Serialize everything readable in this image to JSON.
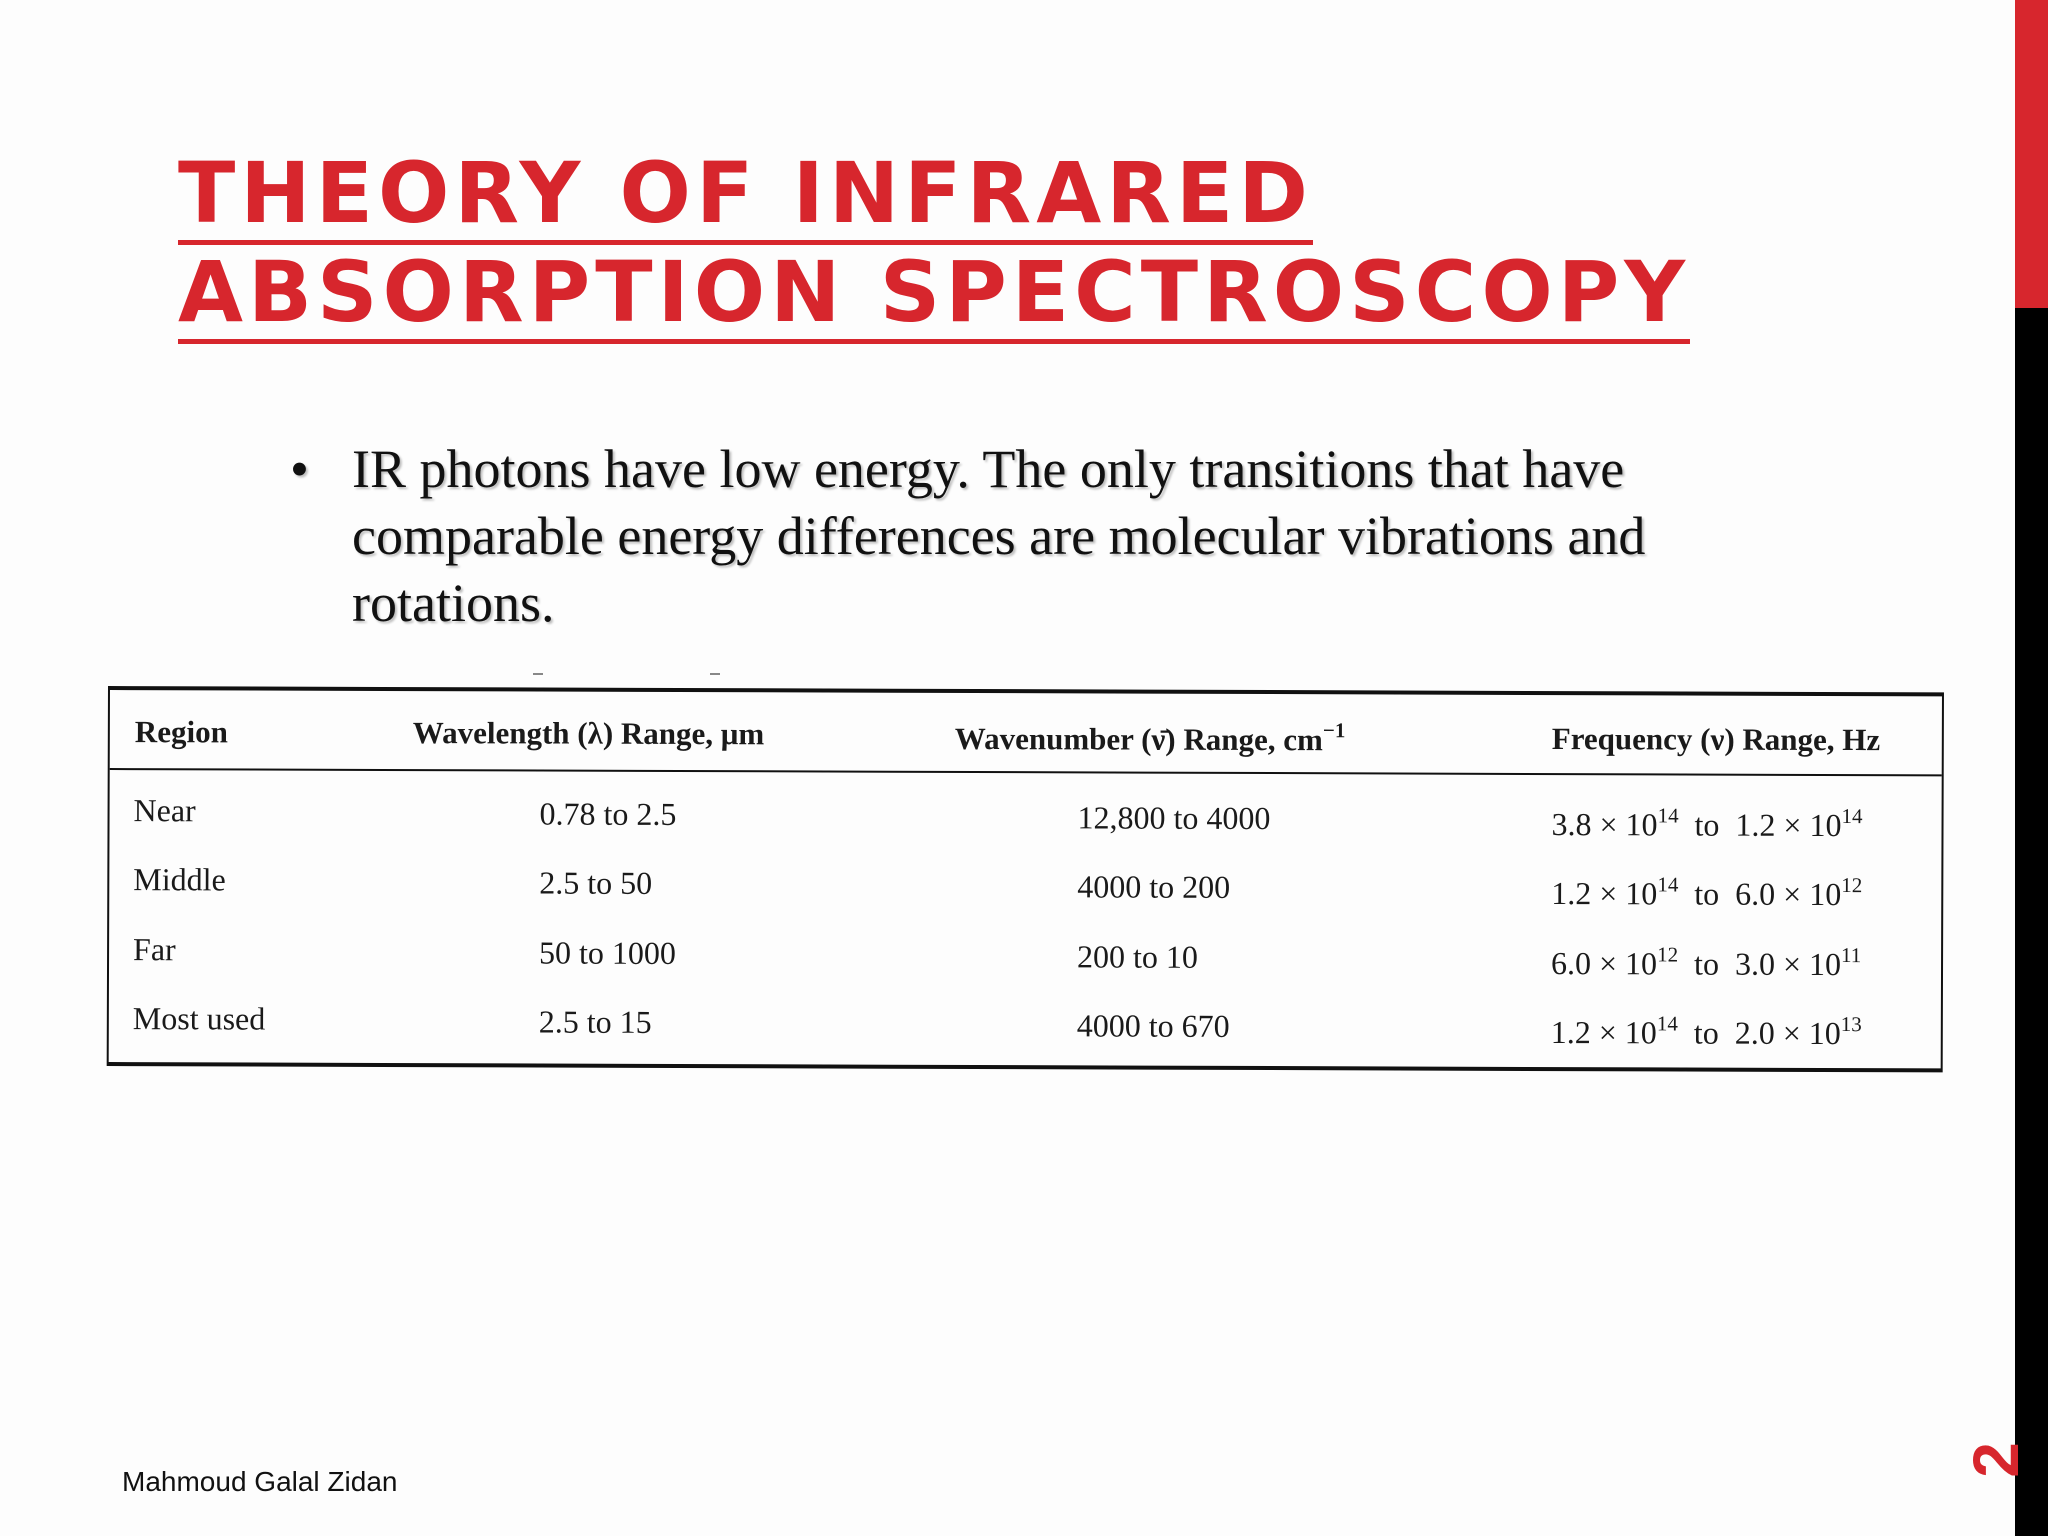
{
  "slide": {
    "title_line1": "THEORY OF INFRARED",
    "title_line2": "ABSORPTION SPECTROSCOPY",
    "bullet_symbol": "•",
    "bullet_text": "IR photons have low energy. The only transitions that have comparable energy differences are molecular vibrations and rotations.",
    "footer": "Mahmoud Galal Zidan",
    "page_number": "2",
    "accent_color": "#d7262d"
  },
  "table": {
    "headers": {
      "region": "Region",
      "wavelength_main": "Wavelength (λ) Range, μm",
      "wavenumber_main": "Wavenumber (ν̄) Range, cm",
      "wavenumber_sup": "−1",
      "frequency_main": "Frequency (ν) Range, Hz"
    },
    "rows": [
      {
        "region": "Near",
        "wavelength": "0.78 to 2.5",
        "wavenumber": "12,800 to 4000",
        "freq_from_base": "3.8 × 10",
        "freq_from_exp": "14",
        "freq_to": "to",
        "freq_end_base": "1.2 × 10",
        "freq_end_exp": "14"
      },
      {
        "region": "Middle",
        "wavelength": "2.5 to 50",
        "wavenumber": "4000 to 200",
        "freq_from_base": "1.2 × 10",
        "freq_from_exp": "14",
        "freq_to": "to",
        "freq_end_base": "6.0 × 10",
        "freq_end_exp": "12"
      },
      {
        "region": "Far",
        "wavelength": "50 to 1000",
        "wavenumber": "200 to 10",
        "freq_from_base": "6.0 × 10",
        "freq_from_exp": "12",
        "freq_to": "to",
        "freq_end_base": "3.0 × 10",
        "freq_end_exp": "11"
      },
      {
        "region": "Most used",
        "wavelength": "2.5 to 15",
        "wavenumber": "4000 to 670",
        "freq_from_base": "1.2 × 10",
        "freq_from_exp": "14",
        "freq_to": "to",
        "freq_end_base": "2.0 × 10",
        "freq_end_exp": "13"
      }
    ]
  }
}
